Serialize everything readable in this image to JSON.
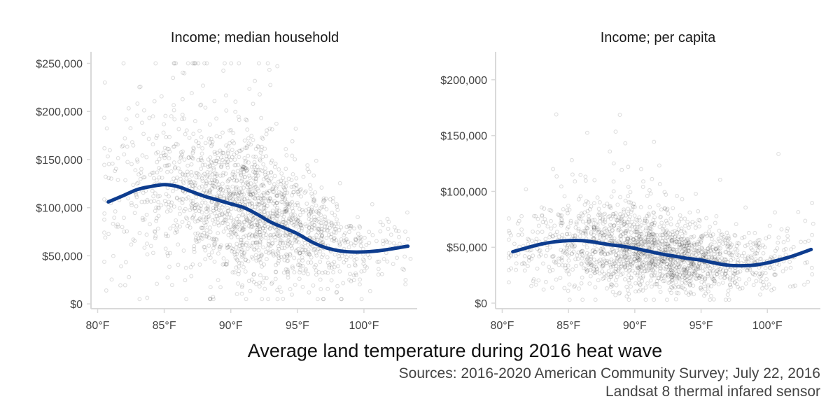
{
  "colors": {
    "smooth_line": "#0d3c8e",
    "points": "#000000",
    "axis": "#d9d9d9"
  },
  "chart_data": [
    {
      "type": "scatter",
      "title": "Income; median household",
      "x_tick_labels": [
        "80°F",
        "85°F",
        "90°F",
        "95°F",
        "100°F"
      ],
      "x_ticks": [
        80,
        85,
        90,
        95,
        100
      ],
      "y_tick_labels": [
        "$0",
        "$50,000",
        "$100,000",
        "$150,000",
        "$200,000",
        "$250,000"
      ],
      "y_ticks": [
        0,
        50000,
        100000,
        150000,
        200000,
        250000
      ],
      "xlim": [
        79.5,
        104
      ],
      "ylim": [
        -5000,
        262000
      ],
      "point_count_approx": 1800,
      "point_cloud": {
        "x_range": [
          80.5,
          103.5
        ],
        "y_min": 5000,
        "y_cap": 250000,
        "center_by_x": [
          [
            80.5,
            108000
          ],
          [
            85,
            122000
          ],
          [
            88,
            115000
          ],
          [
            92,
            95000
          ],
          [
            95,
            78000
          ],
          [
            98,
            60000
          ],
          [
            100,
            55000
          ],
          [
            103.5,
            60000
          ]
        ]
      },
      "smooth": {
        "x": [
          80.8,
          82,
          83,
          84,
          85,
          86,
          87,
          88,
          89,
          90,
          91,
          92,
          93,
          94,
          95,
          96,
          97,
          98,
          99,
          100,
          101,
          102,
          103.3
        ],
        "y": [
          106000,
          113000,
          119000,
          122000,
          124000,
          122000,
          117000,
          112000,
          108000,
          104000,
          100000,
          93000,
          85000,
          79000,
          73000,
          65000,
          59000,
          55500,
          54000,
          54000,
          55000,
          57000,
          60000
        ]
      }
    },
    {
      "type": "scatter",
      "title": "Income; per capita",
      "x_tick_labels": [
        "80°F",
        "85°F",
        "90°F",
        "95°F",
        "100°F"
      ],
      "x_ticks": [
        80,
        85,
        90,
        95,
        100
      ],
      "y_tick_labels": [
        "$0",
        "$50,000",
        "$100,000",
        "$150,000",
        "$200,000"
      ],
      "y_ticks": [
        0,
        50000,
        100000,
        150000,
        200000
      ],
      "xlim": [
        79.5,
        104
      ],
      "ylim": [
        -5000,
        225000
      ],
      "point_count_approx": 1800,
      "point_cloud": {
        "x_range": [
          80.5,
          103.5
        ],
        "y_min": 3000,
        "y_cap": 215000,
        "center_by_x": [
          [
            80.5,
            48000
          ],
          [
            85,
            55000
          ],
          [
            90,
            48000
          ],
          [
            95,
            38000
          ],
          [
            98,
            33000
          ],
          [
            100,
            36000
          ],
          [
            103.5,
            46000
          ]
        ]
      },
      "smooth": {
        "x": [
          80.8,
          82,
          83,
          84,
          85,
          86,
          87,
          88,
          89,
          90,
          91,
          92,
          93,
          94,
          95,
          96,
          97,
          98,
          99,
          100,
          101,
          102,
          103.3
        ],
        "y": [
          46000,
          50000,
          53000,
          55000,
          56000,
          56000,
          54500,
          52500,
          51000,
          49000,
          46500,
          44000,
          42000,
          40000,
          38500,
          36000,
          34000,
          33500,
          34000,
          36000,
          39000,
          42500,
          48000
        ]
      }
    }
  ],
  "xlabel": "Average land temperature during 2016 heat wave",
  "caption": [
    "Sources: 2016-2020 American Community Survey; July 22, 2016",
    "Landsat 8 thermal infared sensor"
  ]
}
